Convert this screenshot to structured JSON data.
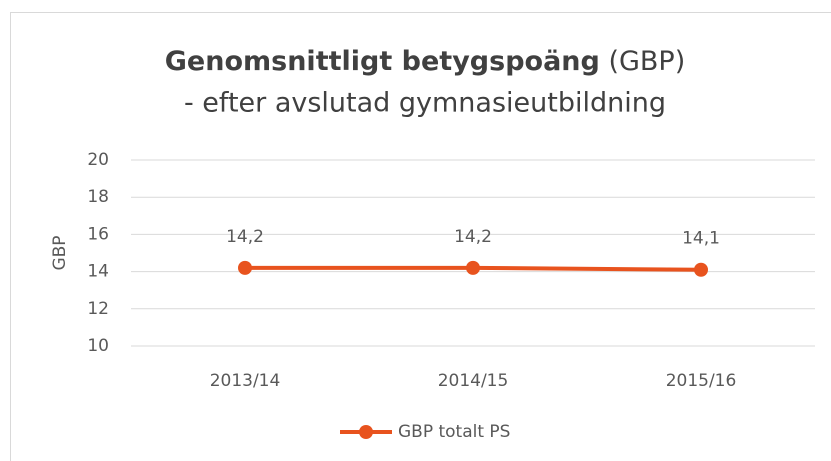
{
  "chart_data": {
    "type": "line",
    "title": "Genomsnittligt betygspoäng",
    "title_suffix": "(GBP)",
    "subtitle": "- efter avslutad gymnasieutbildning",
    "y_label": "GBP",
    "categories": [
      "2013/14",
      "2014/15",
      "2015/16"
    ],
    "series": [
      {
        "name": "GBP totalt PS",
        "color": "#e8531e",
        "values": [
          14.2,
          14.2,
          14.1
        ],
        "value_labels": [
          "14,2",
          "14,2",
          "14,1"
        ]
      }
    ],
    "ylim": [
      10,
      20
    ],
    "yticks": [
      10,
      12,
      14,
      16,
      18,
      20
    ],
    "grid": true,
    "legend": "bottom"
  }
}
